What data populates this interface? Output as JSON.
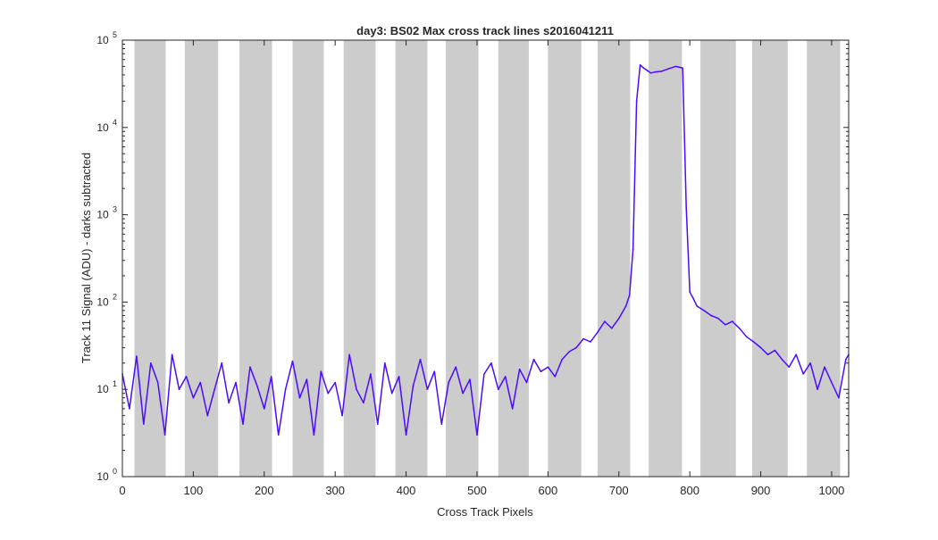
{
  "chart_data": {
    "type": "line",
    "title": "day3: BS02  Max cross track lines  s2016041211",
    "xlabel": "Cross Track Pixels",
    "ylabel": "Track 11 Signal (ADU) - darks subtracted",
    "xlim": [
      0,
      1024
    ],
    "ylim": [
      1,
      100000
    ],
    "yscale": "log",
    "grid": false,
    "legend": "none",
    "x_ticks": [
      0,
      100,
      200,
      300,
      400,
      500,
      600,
      700,
      800,
      900,
      1000
    ],
    "x_tick_labels": [
      "0",
      "100",
      "200",
      "300",
      "400",
      "500",
      "600",
      "700",
      "800",
      "900",
      "1000"
    ],
    "y_ticks": [
      1,
      10,
      100,
      1000,
      10000,
      100000
    ],
    "y_tick_labels": [
      {
        "base": "10",
        "exp": "0"
      },
      {
        "base": "10",
        "exp": "1"
      },
      {
        "base": "10",
        "exp": "2"
      },
      {
        "base": "10",
        "exp": "3"
      },
      {
        "base": "10",
        "exp": "4"
      },
      {
        "base": "10",
        "exp": "5"
      }
    ],
    "shaded_bands_x": [
      [
        17,
        61
      ],
      [
        88,
        135
      ],
      [
        165,
        211
      ],
      [
        240,
        284
      ],
      [
        312,
        357
      ],
      [
        385,
        430
      ],
      [
        456,
        502
      ],
      [
        530,
        573
      ],
      [
        600,
        647
      ],
      [
        670,
        716
      ],
      [
        742,
        789
      ],
      [
        815,
        865
      ],
      [
        888,
        938
      ],
      [
        965,
        1012
      ]
    ],
    "band_color": "#cccccc",
    "series_color": "#4b0bff",
    "series": [
      {
        "x": [
          0,
          10,
          20,
          30,
          40,
          50,
          60,
          70,
          80,
          90,
          100,
          110,
          120,
          130,
          140,
          150,
          160,
          170,
          180,
          190,
          200,
          210,
          220,
          230,
          240,
          250,
          260,
          270,
          280,
          290,
          300,
          310,
          320,
          330,
          340,
          350,
          360,
          370,
          380,
          390,
          400,
          410,
          420,
          430,
          440,
          450,
          460,
          470,
          480,
          490,
          500,
          510,
          520,
          530,
          540,
          550,
          560,
          570,
          580,
          590,
          600,
          610,
          620,
          630,
          640,
          650,
          660,
          670,
          680,
          690,
          700,
          710,
          715,
          720,
          725,
          730,
          735,
          740,
          745,
          750,
          760,
          770,
          780,
          790,
          795,
          800,
          805,
          810,
          820,
          830,
          840,
          850,
          860,
          870,
          880,
          890,
          900,
          910,
          920,
          930,
          940,
          950,
          960,
          970,
          980,
          990,
          1000,
          1010,
          1020,
          1024
        ],
        "values": [
          15,
          6,
          24,
          4,
          20,
          12,
          3,
          25,
          10,
          14,
          8,
          12,
          5,
          10,
          20,
          7,
          12,
          4,
          18,
          11,
          6,
          14,
          3,
          10,
          21,
          8,
          13,
          3,
          16,
          9,
          12,
          5,
          25,
          10,
          7,
          15,
          4,
          20,
          9,
          14,
          3,
          11,
          22,
          10,
          16,
          4,
          12,
          18,
          9,
          13,
          3,
          15,
          20,
          10,
          14,
          6,
          17,
          12,
          22,
          16,
          18,
          14,
          22,
          27,
          30,
          38,
          35,
          45,
          60,
          50,
          65,
          90,
          120,
          400,
          20000,
          52000,
          48000,
          45000,
          42000,
          43000,
          44000,
          47000,
          50000,
          48000,
          1200,
          130,
          110,
          90,
          80,
          70,
          65,
          55,
          60,
          50,
          40,
          35,
          30,
          25,
          28,
          22,
          18,
          25,
          15,
          20,
          10,
          18,
          12,
          8,
          22,
          25
        ]
      }
    ]
  }
}
